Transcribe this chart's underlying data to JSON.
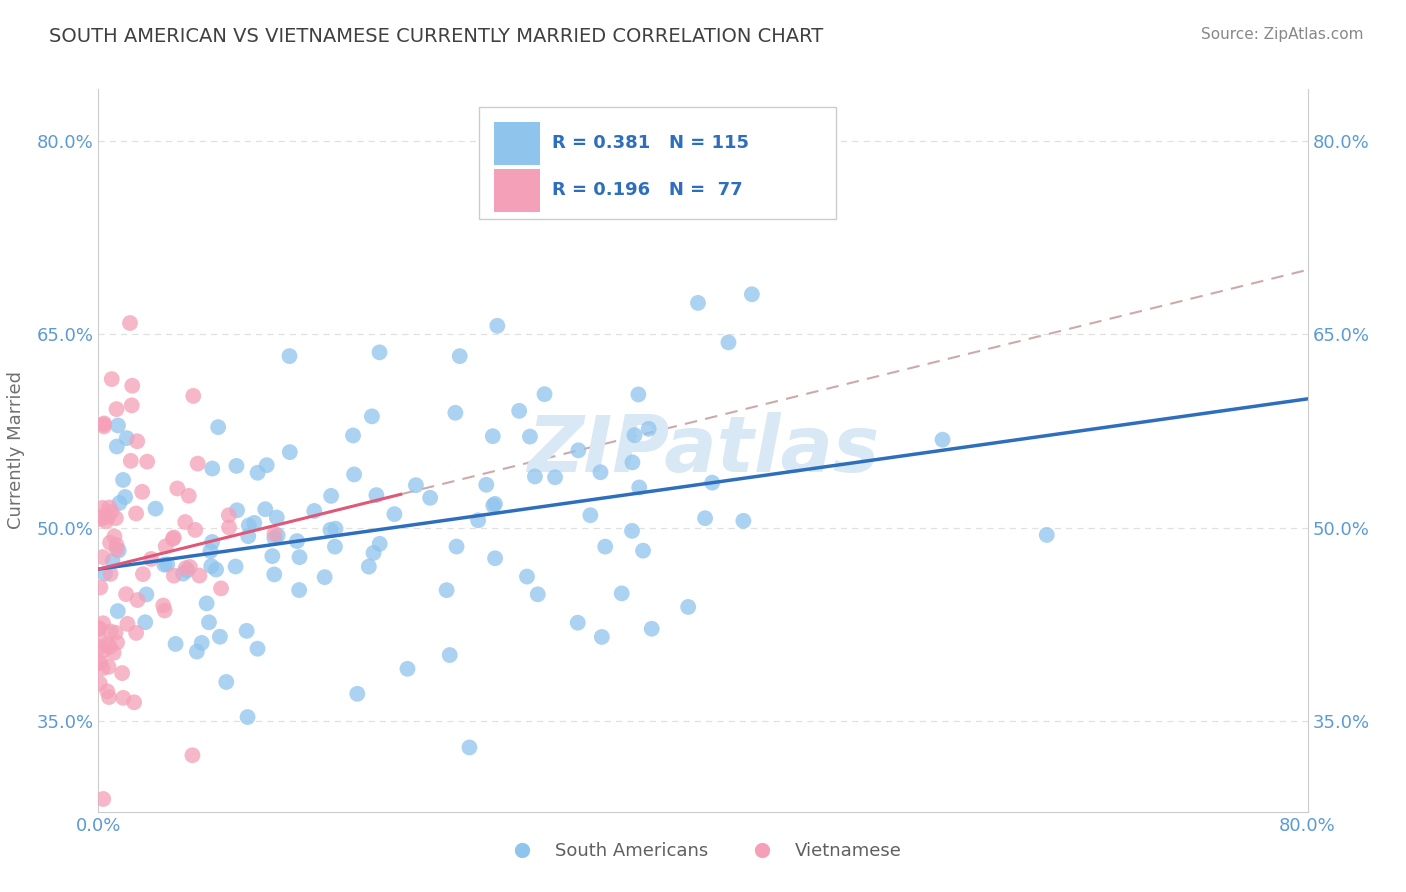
{
  "title": "SOUTH AMERICAN VS VIETNAMESE CURRENTLY MARRIED CORRELATION CHART",
  "source": "Source: ZipAtlas.com",
  "ylabel": "Currently Married",
  "xmin": 0.0,
  "xmax": 0.8,
  "ymin": 0.28,
  "ymax": 0.84,
  "yticks": [
    0.35,
    0.5,
    0.65,
    0.8
  ],
  "ytick_labels": [
    "35.0%",
    "50.0%",
    "65.0%",
    "80.0%"
  ],
  "blue_color": "#8fc4ed",
  "pink_color": "#f4a0b8",
  "blue_line_color": "#2e6fbd",
  "pink_line_color": "#e05878",
  "dashed_line_color": "#ccaaaa",
  "watermark_color": "#d8e8f4",
  "title_color": "#404040",
  "tick_color": "#5b9bd5",
  "grid_color": "#e0e0e0",
  "blue_trend_x": [
    0.0,
    0.8
  ],
  "blue_trend_y": [
    0.468,
    0.6
  ],
  "pink_trend_x": [
    0.0,
    0.2
  ],
  "pink_trend_y": [
    0.468,
    0.526
  ],
  "dashed_line_x": [
    0.0,
    0.8
  ],
  "dashed_line_y": [
    0.468,
    0.7
  ]
}
